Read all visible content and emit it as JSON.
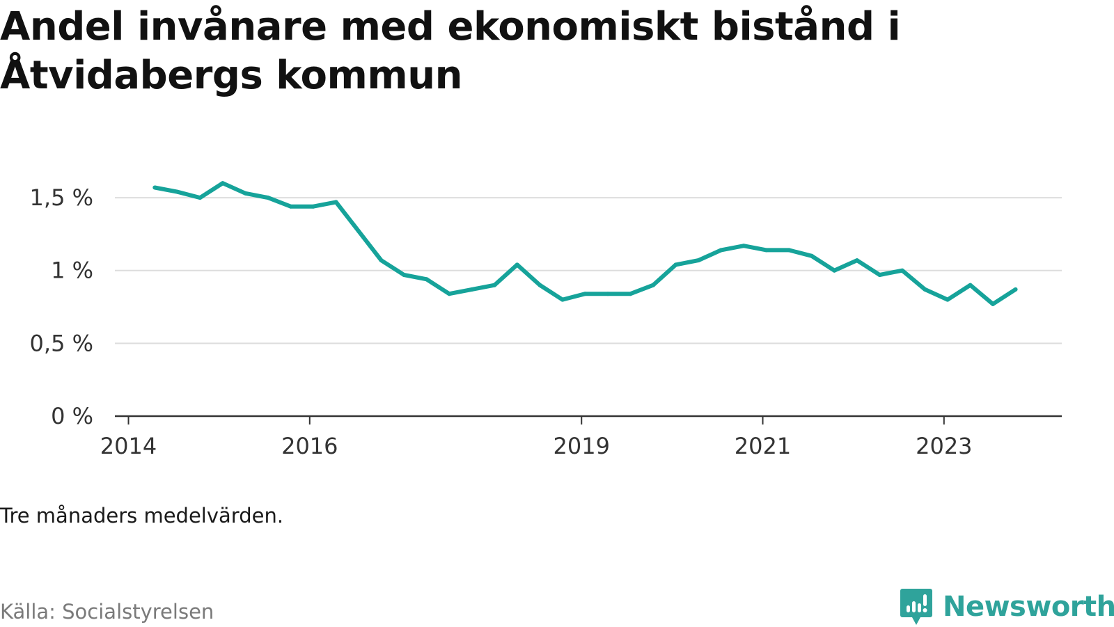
{
  "title": "Andel invånare med ekonomiskt bistånd i Åtvidabergs kommun",
  "note": "Tre månaders medelvärden.",
  "source": "Källa: Socialstyrelsen",
  "brand": "Newsworthy",
  "colors": {
    "line": "#16a39a",
    "grid": "#dddddd",
    "axis": "#333333",
    "brand": "#2fa39b"
  },
  "chart_data": {
    "type": "line",
    "title": "Andel invånare med ekonomiskt bistånd i Åtvidabergs kommun",
    "xlabel": "",
    "ylabel": "",
    "y_ticks": [
      {
        "value": 0,
        "label": "0 %"
      },
      {
        "value": 0.5,
        "label": "0,5 %"
      },
      {
        "value": 1,
        "label": "1 %"
      },
      {
        "value": 1.5,
        "label": "1,5 %"
      }
    ],
    "x_ticks": [
      {
        "value": 2014.0,
        "label": "2014"
      },
      {
        "value": 2016.0,
        "label": "2016"
      },
      {
        "value": 2019.0,
        "label": "2019"
      },
      {
        "value": 2021.0,
        "label": "2021"
      },
      {
        "value": 2023.0,
        "label": "2023"
      }
    ],
    "xlim": [
      2013.85,
      2024.3
    ],
    "ylim": [
      0,
      1.62
    ],
    "grid": true,
    "series": [
      {
        "x": [
          2014.29,
          2014.54,
          2014.79,
          2015.04,
          2015.29,
          2015.54,
          2015.79,
          2016.04,
          2016.29,
          2016.54,
          2016.79,
          2017.04,
          2017.29,
          2017.54,
          2017.79,
          2018.04,
          2018.29,
          2018.54,
          2018.79,
          2019.04,
          2019.29,
          2019.54,
          2019.79,
          2020.04,
          2020.29,
          2020.54,
          2020.79,
          2021.04,
          2021.29,
          2021.54,
          2021.79,
          2022.04,
          2022.29,
          2022.54,
          2022.79,
          2023.04,
          2023.29,
          2023.54,
          2023.79
        ],
        "values": [
          1.57,
          1.54,
          1.5,
          1.6,
          1.53,
          1.5,
          1.44,
          1.44,
          1.47,
          1.27,
          1.07,
          0.97,
          0.94,
          0.84,
          0.87,
          0.9,
          1.04,
          0.9,
          0.8,
          0.84,
          0.84,
          0.84,
          0.9,
          1.04,
          1.07,
          1.14,
          1.17,
          1.14,
          1.14,
          1.1,
          1.0,
          1.07,
          0.97,
          1.0,
          0.87,
          0.8,
          0.9,
          0.77,
          0.87
        ]
      }
    ]
  }
}
